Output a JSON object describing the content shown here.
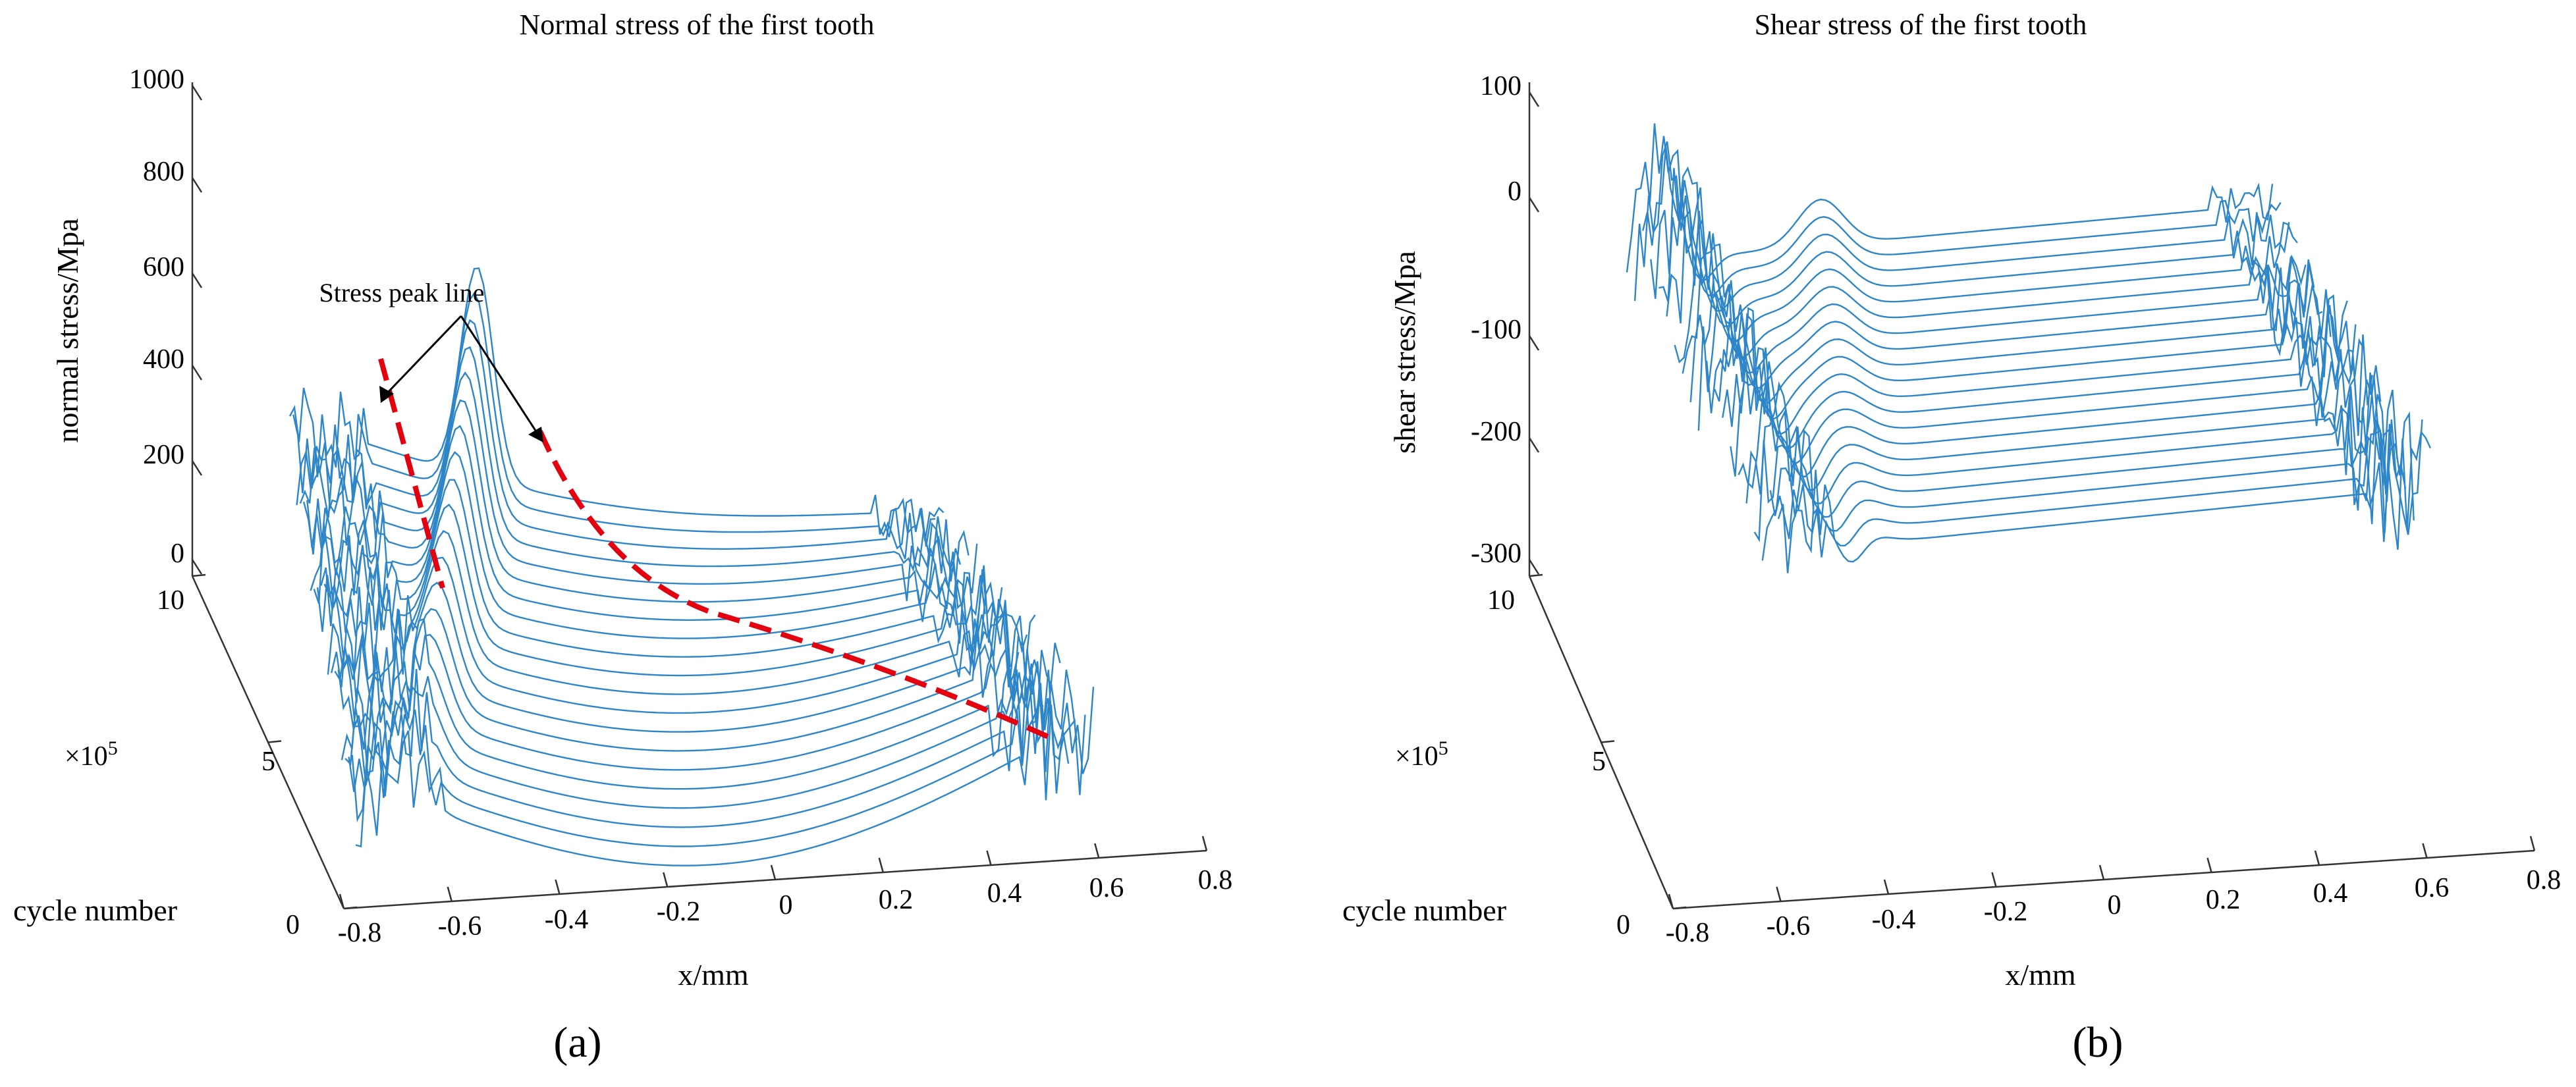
{
  "chart_data": [
    {
      "id": "a",
      "type": "waterfall3d",
      "title": "Normal stress of the first tooth",
      "panel_label": "(a)",
      "xlabel": "x/mm",
      "ylabel": "cycle number",
      "y_multiplier": "×10",
      "y_multiplier_exp": "5",
      "zlabel": "normal stress/Mpa",
      "x_ticks": [
        "-0.8",
        "-0.6",
        "-0.4",
        "-0.2",
        "0",
        "0.2",
        "0.4",
        "0.6",
        "0.8"
      ],
      "y_ticks": [
        "0",
        "5",
        "10"
      ],
      "z_ticks": [
        "0",
        "200",
        "400",
        "600",
        "800",
        "1000"
      ],
      "xlim": [
        -0.8,
        0.8
      ],
      "ylim": [
        0,
        10
      ],
      "zlim": [
        0,
        1000
      ],
      "curve_count": 20,
      "annotation": "Stress peak line",
      "series_color": "#2E86C8",
      "annotation_color": "#E3000F"
    },
    {
      "id": "b",
      "type": "waterfall3d",
      "title": "Shear stress of the first tooth",
      "panel_label": "(b)",
      "xlabel": "x/mm",
      "ylabel": "cycle number",
      "y_multiplier": "×10",
      "y_multiplier_exp": "5",
      "zlabel": "shear stress/Mpa",
      "x_ticks": [
        "-0.8",
        "-0.6",
        "-0.4",
        "-0.2",
        "0",
        "0.2",
        "0.4",
        "0.6",
        "0.8"
      ],
      "y_ticks": [
        "0",
        "5",
        "10"
      ],
      "z_ticks": [
        "-300",
        "-200",
        "-100",
        "0",
        "100"
      ],
      "xlim": [
        -0.8,
        0.8
      ],
      "ylim": [
        0,
        10
      ],
      "zlim": [
        -300,
        100
      ],
      "curve_count": 20,
      "series_color": "#2E86C8"
    }
  ]
}
